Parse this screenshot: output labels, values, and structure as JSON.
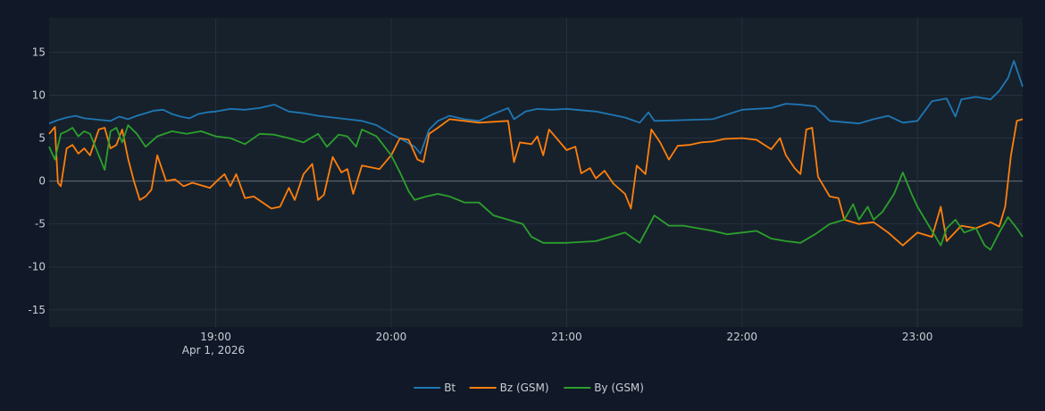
{
  "chart_data": {
    "type": "line",
    "x_unit": "time (UTC)",
    "date_label": "Apr 1, 2026",
    "x_range": [
      "2026-04-01T18:03",
      "2026-04-01T23:36"
    ],
    "x_ticks": [
      "19:00",
      "20:00",
      "21:00",
      "22:00",
      "23:00"
    ],
    "ylim": [
      -17,
      19
    ],
    "y_ticks": [
      15,
      10,
      5,
      0,
      -5,
      -10,
      -15
    ],
    "grid": true,
    "legend_position": "bottom-center",
    "colors": {
      "background": "#111827",
      "plot_bg": "#17212b",
      "grid": "#253040",
      "zero_line": "#56606b"
    },
    "series": [
      {
        "name": "Bt",
        "color": "#1f77b4",
        "points": [
          [
            "18:03",
            6.7
          ],
          [
            "18:06",
            7.1
          ],
          [
            "18:09",
            7.4
          ],
          [
            "18:12",
            7.6
          ],
          [
            "18:15",
            7.3
          ],
          [
            "18:18",
            7.2
          ],
          [
            "18:21",
            7.1
          ],
          [
            "18:24",
            7.0
          ],
          [
            "18:27",
            7.5
          ],
          [
            "18:30",
            7.2
          ],
          [
            "18:33",
            7.6
          ],
          [
            "18:36",
            7.9
          ],
          [
            "18:39",
            8.2
          ],
          [
            "18:42",
            8.3
          ],
          [
            "18:45",
            7.8
          ],
          [
            "18:48",
            7.5
          ],
          [
            "18:51",
            7.3
          ],
          [
            "18:54",
            7.8
          ],
          [
            "18:57",
            8.0
          ],
          [
            "19:00",
            8.1
          ],
          [
            "19:05",
            8.4
          ],
          [
            "19:10",
            8.3
          ],
          [
            "19:15",
            8.5
          ],
          [
            "19:20",
            8.9
          ],
          [
            "19:25",
            8.1
          ],
          [
            "19:30",
            7.9
          ],
          [
            "19:35",
            7.6
          ],
          [
            "19:40",
            7.4
          ],
          [
            "19:45",
            7.2
          ],
          [
            "19:50",
            7.0
          ],
          [
            "19:55",
            6.5
          ],
          [
            "20:00",
            5.5
          ],
          [
            "20:05",
            4.6
          ],
          [
            "20:08",
            4.0
          ],
          [
            "20:10",
            3.2
          ],
          [
            "20:13",
            6.0
          ],
          [
            "20:16",
            7.0
          ],
          [
            "20:20",
            7.6
          ],
          [
            "20:25",
            7.2
          ],
          [
            "20:30",
            7.0
          ],
          [
            "20:35",
            7.8
          ],
          [
            "20:40",
            8.5
          ],
          [
            "20:42",
            7.2
          ],
          [
            "20:46",
            8.1
          ],
          [
            "20:50",
            8.4
          ],
          [
            "20:55",
            8.3
          ],
          [
            "21:00",
            8.4
          ],
          [
            "21:10",
            8.1
          ],
          [
            "21:20",
            7.4
          ],
          [
            "21:25",
            6.8
          ],
          [
            "21:28",
            8.0
          ],
          [
            "21:30",
            7.0
          ],
          [
            "21:40",
            7.1
          ],
          [
            "21:50",
            7.2
          ],
          [
            "22:00",
            8.3
          ],
          [
            "22:10",
            8.5
          ],
          [
            "22:15",
            9.0
          ],
          [
            "22:20",
            8.9
          ],
          [
            "22:25",
            8.7
          ],
          [
            "22:30",
            7.0
          ],
          [
            "22:40",
            6.7
          ],
          [
            "22:45",
            7.2
          ],
          [
            "22:50",
            7.6
          ],
          [
            "22:55",
            6.8
          ],
          [
            "23:00",
            7.0
          ],
          [
            "23:05",
            9.3
          ],
          [
            "23:10",
            9.6
          ],
          [
            "23:13",
            7.5
          ],
          [
            "23:15",
            9.5
          ],
          [
            "23:20",
            9.8
          ],
          [
            "23:25",
            9.5
          ],
          [
            "23:28",
            10.5
          ],
          [
            "23:31",
            12.0
          ],
          [
            "23:33",
            14.0
          ],
          [
            "23:35",
            12.0
          ],
          [
            "23:36",
            11.0
          ]
        ]
      },
      {
        "name": "Bz (GSM)",
        "color": "#ff7f0e",
        "points": [
          [
            "18:03",
            5.5
          ],
          [
            "18:05",
            6.3
          ],
          [
            "18:06",
            -0.2
          ],
          [
            "18:07",
            -0.6
          ],
          [
            "18:09",
            3.8
          ],
          [
            "18:11",
            4.2
          ],
          [
            "18:13",
            3.2
          ],
          [
            "18:15",
            3.8
          ],
          [
            "18:17",
            3.0
          ],
          [
            "18:20",
            6.0
          ],
          [
            "18:22",
            6.2
          ],
          [
            "18:24",
            3.8
          ],
          [
            "18:26",
            4.2
          ],
          [
            "18:28",
            6.0
          ],
          [
            "18:30",
            2.6
          ],
          [
            "18:32",
            0.0
          ],
          [
            "18:34",
            -2.2
          ],
          [
            "18:36",
            -1.8
          ],
          [
            "18:38",
            -1.0
          ],
          [
            "18:40",
            3.0
          ],
          [
            "18:43",
            0.0
          ],
          [
            "18:46",
            0.2
          ],
          [
            "18:49",
            -0.6
          ],
          [
            "18:52",
            -0.2
          ],
          [
            "18:55",
            -0.5
          ],
          [
            "18:58",
            -0.8
          ],
          [
            "19:01",
            0.2
          ],
          [
            "19:03",
            0.8
          ],
          [
            "19:05",
            -0.6
          ],
          [
            "19:07",
            0.8
          ],
          [
            "19:10",
            -2.0
          ],
          [
            "19:13",
            -1.8
          ],
          [
            "19:16",
            -2.5
          ],
          [
            "19:19",
            -3.2
          ],
          [
            "19:22",
            -3.0
          ],
          [
            "19:25",
            -0.8
          ],
          [
            "19:27",
            -2.2
          ],
          [
            "19:30",
            0.8
          ],
          [
            "19:33",
            2.0
          ],
          [
            "19:35",
            -2.2
          ],
          [
            "19:37",
            -1.6
          ],
          [
            "19:40",
            2.8
          ],
          [
            "19:43",
            1.0
          ],
          [
            "19:45",
            1.4
          ],
          [
            "19:47",
            -1.5
          ],
          [
            "19:50",
            1.8
          ],
          [
            "19:53",
            1.6
          ],
          [
            "19:56",
            1.4
          ],
          [
            "20:00",
            3.0
          ],
          [
            "20:03",
            5.0
          ],
          [
            "20:06",
            4.8
          ],
          [
            "20:09",
            2.5
          ],
          [
            "20:11",
            2.2
          ],
          [
            "20:13",
            5.5
          ],
          [
            "20:16",
            6.2
          ],
          [
            "20:20",
            7.2
          ],
          [
            "20:25",
            7.0
          ],
          [
            "20:30",
            6.8
          ],
          [
            "20:35",
            6.9
          ],
          [
            "20:40",
            7.0
          ],
          [
            "20:42",
            2.2
          ],
          [
            "20:44",
            4.5
          ],
          [
            "20:48",
            4.3
          ],
          [
            "20:50",
            5.2
          ],
          [
            "20:52",
            3.0
          ],
          [
            "20:54",
            6.0
          ],
          [
            "20:56",
            5.2
          ],
          [
            "21:00",
            3.6
          ],
          [
            "21:03",
            4.0
          ],
          [
            "21:05",
            0.9
          ],
          [
            "21:08",
            1.5
          ],
          [
            "21:10",
            0.3
          ],
          [
            "21:13",
            1.2
          ],
          [
            "21:16",
            -0.3
          ],
          [
            "21:20",
            -1.5
          ],
          [
            "21:22",
            -3.2
          ],
          [
            "21:24",
            1.8
          ],
          [
            "21:27",
            0.8
          ],
          [
            "21:29",
            6.0
          ],
          [
            "21:32",
            4.5
          ],
          [
            "21:35",
            2.5
          ],
          [
            "21:38",
            4.1
          ],
          [
            "21:42",
            4.2
          ],
          [
            "21:46",
            4.5
          ],
          [
            "21:50",
            4.6
          ],
          [
            "21:54",
            4.9
          ],
          [
            "22:00",
            5.0
          ],
          [
            "22:05",
            4.8
          ],
          [
            "22:10",
            3.7
          ],
          [
            "22:13",
            5.0
          ],
          [
            "22:15",
            3.0
          ],
          [
            "22:18",
            1.5
          ],
          [
            "22:20",
            0.8
          ],
          [
            "22:22",
            6.0
          ],
          [
            "22:24",
            6.2
          ],
          [
            "22:26",
            0.5
          ],
          [
            "22:30",
            -1.8
          ],
          [
            "22:33",
            -2.0
          ],
          [
            "22:35",
            -4.5
          ],
          [
            "22:40",
            -5.0
          ],
          [
            "22:45",
            -4.8
          ],
          [
            "22:50",
            -6.0
          ],
          [
            "22:55",
            -7.5
          ],
          [
            "23:00",
            -6.0
          ],
          [
            "23:05",
            -6.5
          ],
          [
            "23:08",
            -3.0
          ],
          [
            "23:10",
            -7.0
          ],
          [
            "23:15",
            -5.2
          ],
          [
            "23:20",
            -5.5
          ],
          [
            "23:25",
            -4.8
          ],
          [
            "23:28",
            -5.3
          ],
          [
            "23:30",
            -3.0
          ],
          [
            "23:32",
            3.0
          ],
          [
            "23:34",
            7.0
          ],
          [
            "23:36",
            7.2
          ]
        ]
      },
      {
        "name": "By (GSM)",
        "color": "#2ca02c",
        "points": [
          [
            "18:03",
            4.0
          ],
          [
            "18:05",
            2.5
          ],
          [
            "18:07",
            5.5
          ],
          [
            "18:09",
            5.8
          ],
          [
            "18:11",
            6.2
          ],
          [
            "18:13",
            5.2
          ],
          [
            "18:15",
            5.8
          ],
          [
            "18:17",
            5.5
          ],
          [
            "18:20",
            3.0
          ],
          [
            "18:22",
            1.3
          ],
          [
            "18:24",
            5.8
          ],
          [
            "18:26",
            6.2
          ],
          [
            "18:28",
            4.5
          ],
          [
            "18:30",
            6.5
          ],
          [
            "18:33",
            5.5
          ],
          [
            "18:36",
            4.0
          ],
          [
            "18:40",
            5.2
          ],
          [
            "18:45",
            5.8
          ],
          [
            "18:50",
            5.5
          ],
          [
            "18:55",
            5.8
          ],
          [
            "19:00",
            5.2
          ],
          [
            "19:05",
            5.0
          ],
          [
            "19:10",
            4.3
          ],
          [
            "19:15",
            5.5
          ],
          [
            "19:20",
            5.4
          ],
          [
            "19:25",
            5.0
          ],
          [
            "19:30",
            4.5
          ],
          [
            "19:35",
            5.5
          ],
          [
            "19:38",
            4.0
          ],
          [
            "19:42",
            5.4
          ],
          [
            "19:45",
            5.2
          ],
          [
            "19:48",
            4.0
          ],
          [
            "19:50",
            6.0
          ],
          [
            "19:55",
            5.2
          ],
          [
            "20:00",
            3.0
          ],
          [
            "20:03",
            1.0
          ],
          [
            "20:06",
            -1.2
          ],
          [
            "20:08",
            -2.2
          ],
          [
            "20:12",
            -1.8
          ],
          [
            "20:16",
            -1.5
          ],
          [
            "20:20",
            -1.8
          ],
          [
            "20:25",
            -2.5
          ],
          [
            "20:30",
            -2.5
          ],
          [
            "20:35",
            -4.0
          ],
          [
            "20:40",
            -4.5
          ],
          [
            "20:45",
            -5.0
          ],
          [
            "20:48",
            -6.5
          ],
          [
            "20:52",
            -7.2
          ],
          [
            "20:56",
            -7.2
          ],
          [
            "21:00",
            -7.2
          ],
          [
            "21:10",
            -7.0
          ],
          [
            "21:15",
            -6.5
          ],
          [
            "21:20",
            -6.0
          ],
          [
            "21:25",
            -7.2
          ],
          [
            "21:30",
            -4.0
          ],
          [
            "21:35",
            -5.2
          ],
          [
            "21:40",
            -5.2
          ],
          [
            "21:45",
            -5.5
          ],
          [
            "21:50",
            -5.8
          ],
          [
            "21:55",
            -6.2
          ],
          [
            "22:00",
            -6.0
          ],
          [
            "22:05",
            -5.8
          ],
          [
            "22:10",
            -6.7
          ],
          [
            "22:15",
            -7.0
          ],
          [
            "22:20",
            -7.2
          ],
          [
            "22:25",
            -6.2
          ],
          [
            "22:30",
            -5.0
          ],
          [
            "22:35",
            -4.5
          ],
          [
            "22:38",
            -2.7
          ],
          [
            "22:40",
            -4.5
          ],
          [
            "22:43",
            -3.0
          ],
          [
            "22:45",
            -4.5
          ],
          [
            "22:48",
            -3.6
          ],
          [
            "22:52",
            -1.5
          ],
          [
            "22:55",
            1.0
          ],
          [
            "22:58",
            -1.5
          ],
          [
            "23:00",
            -3.0
          ],
          [
            "23:05",
            -5.8
          ],
          [
            "23:08",
            -7.5
          ],
          [
            "23:10",
            -5.5
          ],
          [
            "23:13",
            -4.5
          ],
          [
            "23:16",
            -6.0
          ],
          [
            "23:20",
            -5.5
          ],
          [
            "23:23",
            -7.5
          ],
          [
            "23:25",
            -8.0
          ],
          [
            "23:28",
            -6.0
          ],
          [
            "23:31",
            -4.2
          ],
          [
            "23:34",
            -5.5
          ],
          [
            "23:36",
            -6.5
          ]
        ]
      }
    ]
  }
}
